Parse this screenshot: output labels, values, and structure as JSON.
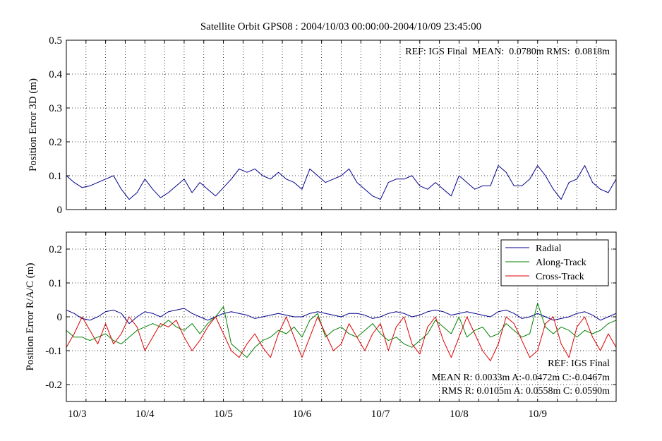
{
  "chart_data": [
    {
      "type": "line",
      "title": "Satellite Orbit GPS08 : 2004/10/03 00:00:00-2004/10/09 23:45:00",
      "ylabel": "Position Error 3D (m)",
      "ylim": [
        0,
        0.5
      ],
      "yticks": [
        "0",
        "0.1",
        "0.2",
        "0.3",
        "0.4",
        "0.5"
      ],
      "xlim": [
        0,
        7
      ],
      "grid": true,
      "annotation": "REF: IGS Final  MEAN:  0.0780m RMS:  0.0818m",
      "series": [
        {
          "color": "#00008b",
          "x": [
            0,
            0.1,
            0.2,
            0.3,
            0.4,
            0.5,
            0.6,
            0.7,
            0.8,
            0.9,
            1.0,
            1.1,
            1.2,
            1.3,
            1.4,
            1.5,
            1.6,
            1.7,
            1.8,
            1.9,
            2.0,
            2.1,
            2.2,
            2.3,
            2.4,
            2.5,
            2.6,
            2.7,
            2.8,
            2.9,
            3.0,
            3.1,
            3.2,
            3.3,
            3.4,
            3.5,
            3.6,
            3.7,
            3.8,
            3.9,
            4.0,
            4.1,
            4.2,
            4.3,
            4.4,
            4.5,
            4.6,
            4.7,
            4.8,
            4.9,
            5.0,
            5.1,
            5.2,
            5.3,
            5.4,
            5.5,
            5.6,
            5.7,
            5.8,
            5.9,
            6.0,
            6.1,
            6.2,
            6.3,
            6.4,
            6.5,
            6.6,
            6.7,
            6.8,
            6.9,
            7.0
          ],
          "values": [
            0.1,
            0.08,
            0.065,
            0.07,
            0.08,
            0.09,
            0.1,
            0.06,
            0.03,
            0.05,
            0.09,
            0.06,
            0.035,
            0.05,
            0.07,
            0.09,
            0.05,
            0.08,
            0.06,
            0.04,
            0.065,
            0.09,
            0.12,
            0.11,
            0.12,
            0.1,
            0.09,
            0.11,
            0.09,
            0.08,
            0.06,
            0.12,
            0.1,
            0.08,
            0.09,
            0.1,
            0.12,
            0.08,
            0.06,
            0.04,
            0.03,
            0.08,
            0.09,
            0.09,
            0.1,
            0.07,
            0.06,
            0.08,
            0.06,
            0.04,
            0.1,
            0.08,
            0.06,
            0.07,
            0.07,
            0.13,
            0.11,
            0.07,
            0.07,
            0.09,
            0.13,
            0.1,
            0.06,
            0.03,
            0.08,
            0.09,
            0.13,
            0.08,
            0.06,
            0.05,
            0.09
          ]
        }
      ]
    },
    {
      "type": "line",
      "ylabel": "Position Error R/A/C (m)",
      "ylim": [
        -0.25,
        0.25
      ],
      "yticks": [
        "-0.2",
        "-0.1",
        "0",
        "0.1",
        "0.2"
      ],
      "xlim": [
        0,
        7
      ],
      "xticklabels": [
        "10/3",
        "10/4",
        "10/5",
        "10/6",
        "10/7",
        "10/8",
        "10/9"
      ],
      "grid": true,
      "legend_position": "top-right",
      "annotation_lines": [
        "REF: IGS Final",
        "MEAN R: 0.0033m A:-0.0472m C:-0.0467m",
        "RMS R: 0.0105m A: 0.0558m C: 0.0590m"
      ],
      "series": [
        {
          "name": "Radial",
          "color": "#00008b",
          "x": [
            0,
            0.1,
            0.2,
            0.3,
            0.4,
            0.5,
            0.6,
            0.7,
            0.8,
            0.9,
            1.0,
            1.1,
            1.2,
            1.3,
            1.4,
            1.5,
            1.6,
            1.7,
            1.8,
            1.9,
            2.0,
            2.1,
            2.2,
            2.3,
            2.4,
            2.5,
            2.6,
            2.7,
            2.8,
            2.9,
            3.0,
            3.1,
            3.2,
            3.3,
            3.4,
            3.5,
            3.6,
            3.7,
            3.8,
            3.9,
            4.0,
            4.1,
            4.2,
            4.3,
            4.4,
            4.5,
            4.6,
            4.7,
            4.8,
            4.9,
            5.0,
            5.1,
            5.2,
            5.3,
            5.4,
            5.5,
            5.6,
            5.7,
            5.8,
            5.9,
            6.0,
            6.1,
            6.2,
            6.3,
            6.4,
            6.5,
            6.6,
            6.7,
            6.8,
            6.9,
            7.0
          ],
          "values": [
            0.02,
            0.01,
            -0.005,
            -0.01,
            0.0,
            0.015,
            0.02,
            0.01,
            -0.02,
            0.0,
            0.015,
            0.01,
            0.0,
            0.015,
            0.02,
            0.025,
            0.01,
            0.0,
            -0.01,
            0.0,
            0.01,
            0.015,
            0.01,
            0.005,
            -0.005,
            0.0,
            0.005,
            0.01,
            0.005,
            0.0,
            0.0,
            0.01,
            0.015,
            0.01,
            0.005,
            0.0,
            0.01,
            0.01,
            0.005,
            -0.005,
            0.0,
            0.01,
            0.015,
            0.01,
            0.0,
            0.005,
            0.015,
            0.02,
            0.015,
            0.005,
            0.01,
            0.015,
            0.01,
            0.005,
            0.0,
            0.015,
            0.02,
            0.01,
            -0.005,
            0.0,
            0.01,
            0.0,
            -0.01,
            -0.005,
            0.0,
            0.01,
            0.015,
            0.005,
            -0.01,
            0.0,
            0.01
          ]
        },
        {
          "name": "Along-Track",
          "color": "#008000",
          "x": [
            0,
            0.1,
            0.2,
            0.3,
            0.4,
            0.5,
            0.6,
            0.7,
            0.8,
            0.9,
            1.0,
            1.1,
            1.2,
            1.3,
            1.4,
            1.5,
            1.6,
            1.7,
            1.8,
            1.9,
            2.0,
            2.1,
            2.2,
            2.3,
            2.4,
            2.5,
            2.6,
            2.7,
            2.8,
            2.9,
            3.0,
            3.1,
            3.2,
            3.3,
            3.4,
            3.5,
            3.6,
            3.7,
            3.8,
            3.9,
            4.0,
            4.1,
            4.2,
            4.3,
            4.4,
            4.5,
            4.6,
            4.7,
            4.8,
            4.9,
            5.0,
            5.1,
            5.2,
            5.3,
            5.4,
            5.5,
            5.6,
            5.7,
            5.8,
            5.9,
            6.0,
            6.1,
            6.2,
            6.3,
            6.4,
            6.5,
            6.6,
            6.7,
            6.8,
            6.9,
            7.0
          ],
          "values": [
            -0.04,
            -0.06,
            -0.06,
            -0.07,
            -0.06,
            -0.05,
            -0.07,
            -0.08,
            -0.06,
            -0.04,
            -0.03,
            -0.02,
            -0.03,
            -0.01,
            -0.03,
            -0.04,
            -0.02,
            -0.05,
            -0.02,
            0.0,
            0.03,
            -0.08,
            -0.1,
            -0.12,
            -0.09,
            -0.07,
            -0.06,
            -0.04,
            -0.05,
            -0.03,
            -0.06,
            -0.01,
            0.01,
            -0.06,
            -0.04,
            -0.03,
            -0.05,
            -0.06,
            -0.04,
            -0.02,
            -0.05,
            -0.07,
            -0.06,
            -0.08,
            -0.09,
            -0.07,
            -0.05,
            -0.01,
            -0.03,
            -0.05,
            0.0,
            -0.06,
            -0.04,
            -0.03,
            -0.06,
            -0.05,
            -0.02,
            -0.04,
            -0.06,
            -0.05,
            0.04,
            -0.03,
            -0.05,
            -0.03,
            -0.04,
            -0.06,
            -0.04,
            -0.05,
            -0.04,
            -0.02,
            -0.01
          ]
        },
        {
          "name": "Cross-Track",
          "color": "#dd0000",
          "x": [
            0,
            0.1,
            0.2,
            0.3,
            0.4,
            0.5,
            0.6,
            0.7,
            0.8,
            0.9,
            1.0,
            1.1,
            1.2,
            1.3,
            1.4,
            1.5,
            1.6,
            1.7,
            1.8,
            1.9,
            2.0,
            2.1,
            2.2,
            2.3,
            2.4,
            2.5,
            2.6,
            2.7,
            2.8,
            2.9,
            3.0,
            3.1,
            3.2,
            3.3,
            3.4,
            3.5,
            3.6,
            3.7,
            3.8,
            3.9,
            4.0,
            4.1,
            4.2,
            4.3,
            4.4,
            4.5,
            4.6,
            4.7,
            4.8,
            4.9,
            5.0,
            5.1,
            5.2,
            5.3,
            5.4,
            5.5,
            5.6,
            5.7,
            5.8,
            5.9,
            6.0,
            6.1,
            6.2,
            6.3,
            6.4,
            6.5,
            6.6,
            6.7,
            6.8,
            6.9,
            7.0
          ],
          "values": [
            -0.09,
            -0.05,
            0.0,
            -0.04,
            -0.08,
            -0.02,
            -0.08,
            -0.05,
            0.0,
            -0.03,
            -0.1,
            -0.06,
            -0.02,
            -0.03,
            -0.01,
            -0.06,
            -0.1,
            -0.07,
            -0.03,
            0.0,
            -0.05,
            -0.1,
            -0.12,
            -0.08,
            -0.05,
            -0.09,
            -0.12,
            -0.05,
            0.0,
            -0.06,
            -0.12,
            -0.06,
            0.0,
            -0.05,
            -0.1,
            -0.08,
            -0.02,
            -0.06,
            -0.1,
            -0.05,
            -0.02,
            -0.1,
            -0.03,
            0.0,
            -0.08,
            -0.11,
            -0.03,
            0.0,
            -0.07,
            -0.12,
            -0.06,
            0.0,
            -0.05,
            -0.1,
            -0.13,
            -0.08,
            0.0,
            -0.02,
            -0.07,
            -0.12,
            -0.1,
            -0.02,
            0.0,
            -0.08,
            -0.12,
            -0.03,
            0.0,
            -0.06,
            -0.1,
            -0.05,
            -0.09
          ]
        }
      ]
    }
  ]
}
